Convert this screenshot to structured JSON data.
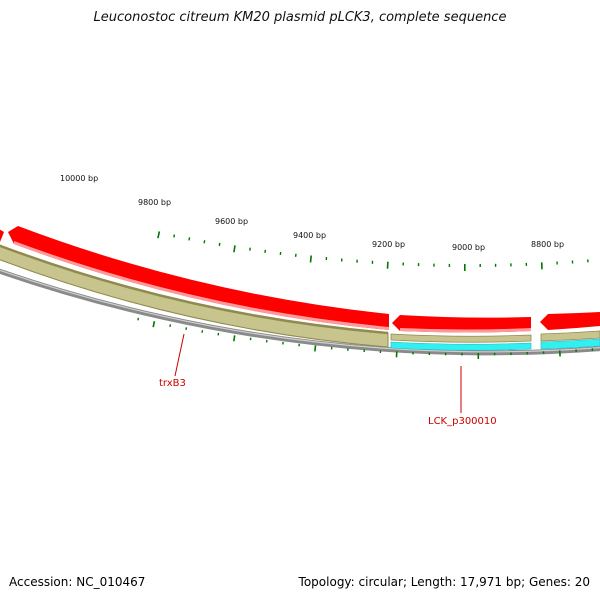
{
  "title": "Leuconostoc citreum KM20 plasmid pLCK3, complete sequence",
  "footer": {
    "accession": "Accession: NC_010467",
    "summary": "Topology: circular; Length: 17,971 bp; Genes: 20"
  },
  "scale": {
    "labels": [
      "10000 bp",
      "9800 bp",
      "9600 bp",
      "9400 bp",
      "9200 bp",
      "9000 bp",
      "8800 bp"
    ]
  },
  "gene_labels": {
    "trxB3": "trxB3",
    "lck": "LCK_p300010"
  },
  "colors": {
    "backbone": "#8a8a8a",
    "cds": "#ff0000",
    "cds_light": "#ff9a9a",
    "gene_band": "#c8c48e",
    "gene_band_dark": "#8f8a4e",
    "rna_band": "#33f0f0",
    "tick": "#007700"
  }
}
